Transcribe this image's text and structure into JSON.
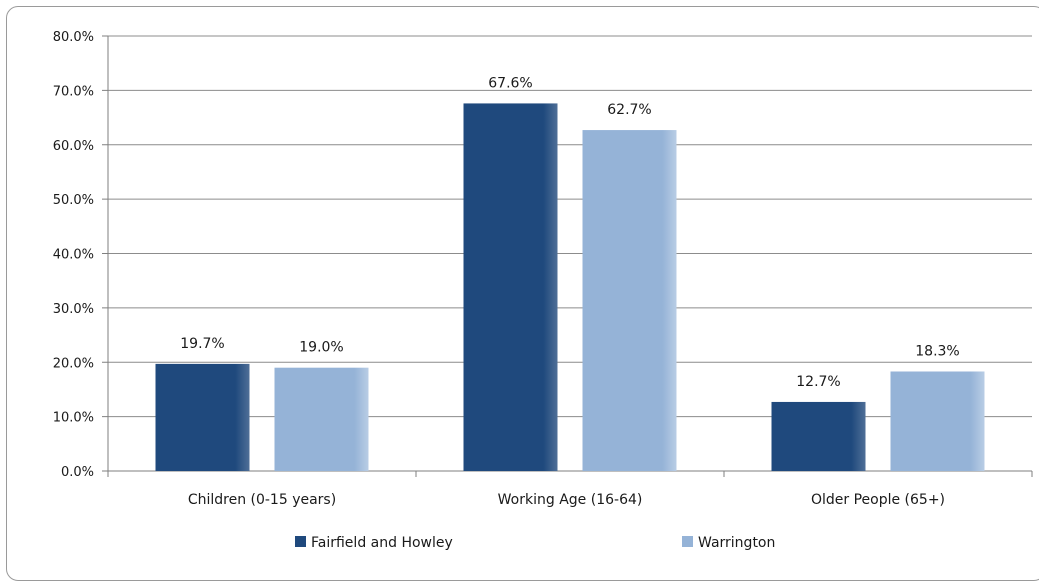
{
  "chart_data": {
    "type": "bar",
    "categories": [
      "Children (0-15 years)",
      "Working Age (16-64)",
      "Older People (65+)"
    ],
    "series": [
      {
        "name": "Fairfield and Howley",
        "values": [
          19.7,
          67.6,
          12.7
        ],
        "labels": [
          "19.7%",
          "67.6%",
          "12.7%"
        ],
        "color": "#1f497d"
      },
      {
        "name": "Warrington",
        "values": [
          19.0,
          62.7,
          18.3
        ],
        "labels": [
          "19.0%",
          "62.7%",
          "18.3%"
        ],
        "color": "#95b3d7"
      }
    ],
    "y_ticks": [
      0,
      10,
      20,
      30,
      40,
      50,
      60,
      70,
      80
    ],
    "y_tick_labels": [
      "0.0%",
      "10.0%",
      "20.0%",
      "30.0%",
      "40.0%",
      "50.0%",
      "60.0%",
      "70.0%",
      "80.0%"
    ],
    "ylim": [
      0,
      80
    ],
    "grid": true,
    "legend_position": "bottom"
  }
}
